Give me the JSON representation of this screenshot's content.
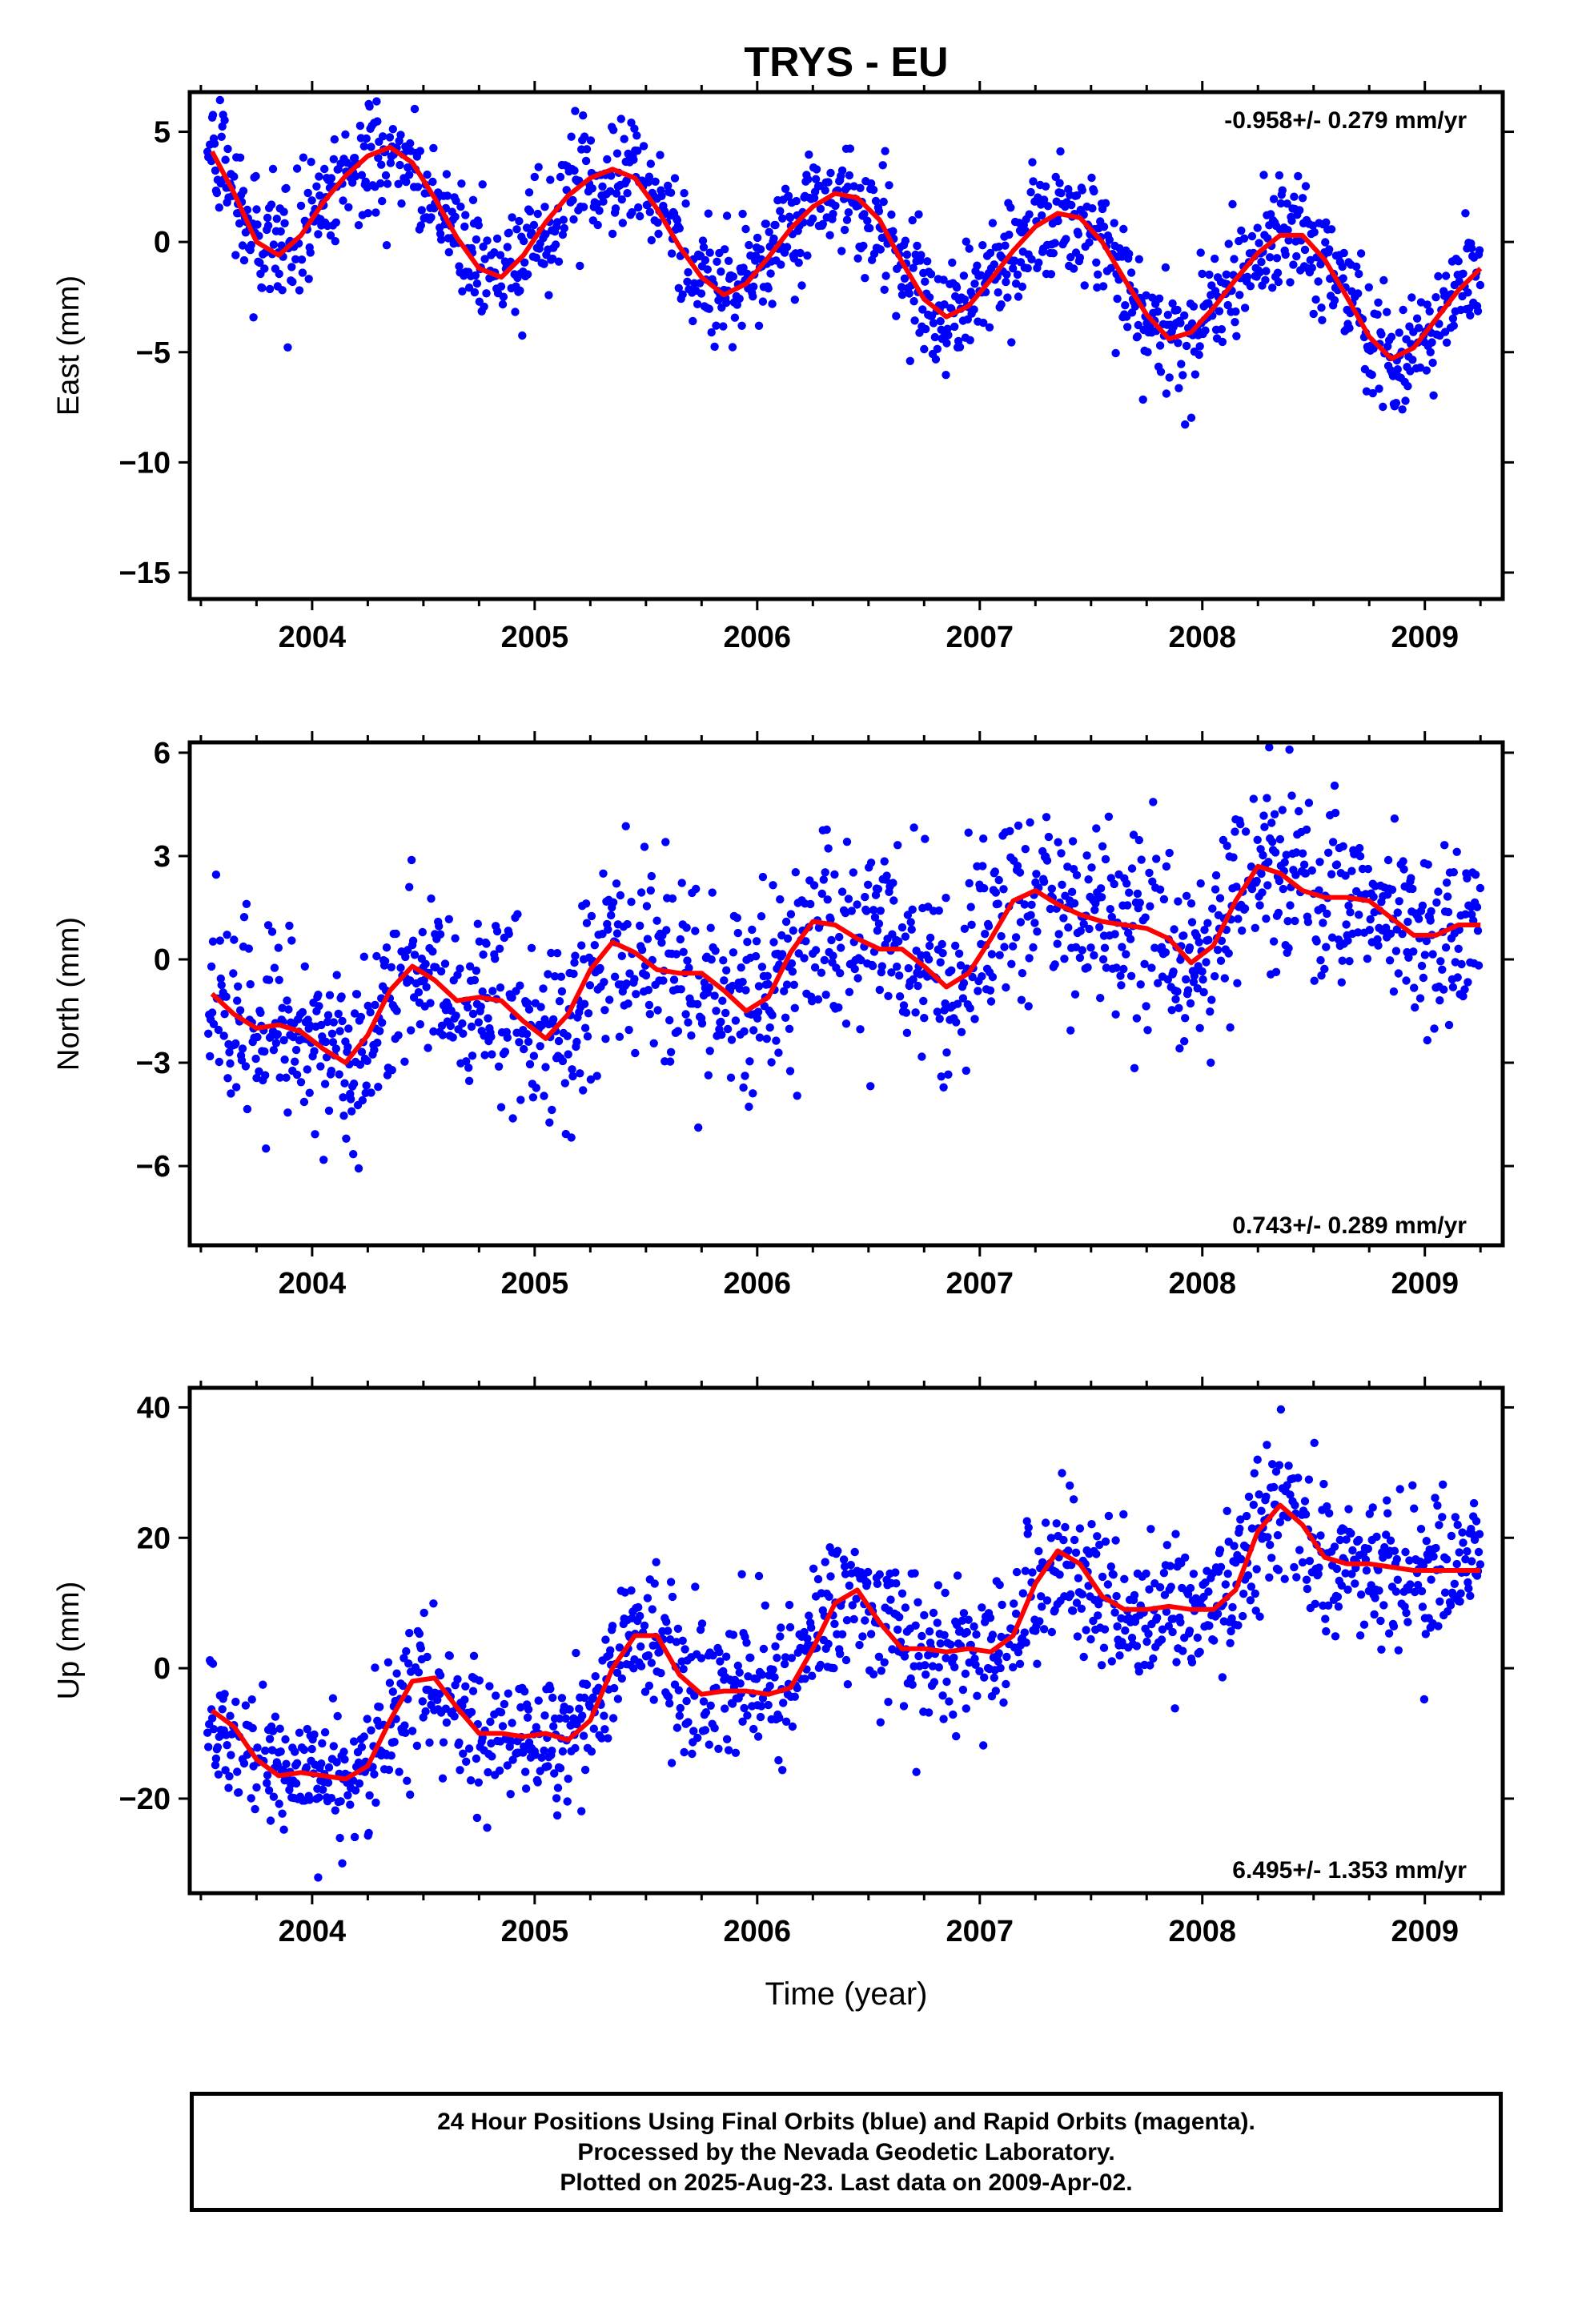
{
  "title": "TRYS - EU",
  "xlabel": "Time (year)",
  "caption": {
    "line1": "24 Hour Positions Using Final Orbits (blue) and Rapid Orbits (magenta).",
    "line2": "Processed by the Nevada Geodetic Laboratory.",
    "line3": "Plotted on 2025-Aug-23. Last data on 2009-Apr-02."
  },
  "colors": {
    "points": "#0000ff",
    "model": "#ff0000",
    "frame": "#000000"
  },
  "chart_data": [
    {
      "type": "scatter",
      "panel": "east",
      "ylabel": "East (mm)",
      "rate_label": "-0.958+/- 0.279 mm/yr",
      "xlim": [
        2003.45,
        2009.35
      ],
      "ylim": [
        -16.2,
        6.8
      ],
      "xticks": [
        "2004",
        "2005",
        "2006",
        "2007",
        "2008",
        "2009"
      ],
      "yticks": [
        5,
        0,
        -5,
        -10,
        -15
      ],
      "model": {
        "name": "fit",
        "x": [
          2003.55,
          2003.65,
          2003.75,
          2003.85,
          2003.95,
          2004.05,
          2004.15,
          2004.25,
          2004.35,
          2004.45,
          2004.55,
          2004.65,
          2004.75,
          2004.85,
          2004.95,
          2005.05,
          2005.15,
          2005.25,
          2005.35,
          2005.45,
          2005.55,
          2005.65,
          2005.75,
          2005.85,
          2005.95,
          2006.05,
          2006.15,
          2006.25,
          2006.35,
          2006.45,
          2006.55,
          2006.65,
          2006.75,
          2006.85,
          2006.95,
          2007.05,
          2007.15,
          2007.25,
          2007.35,
          2007.45,
          2007.55,
          2007.65,
          2007.75,
          2007.85,
          2007.95,
          2008.05,
          2008.15,
          2008.25,
          2008.35,
          2008.45,
          2008.55,
          2008.65,
          2008.75,
          2008.85,
          2008.95,
          2009.05,
          2009.15,
          2009.25
        ],
        "y": [
          4.1,
          2.2,
          0.0,
          -0.6,
          0.3,
          1.8,
          3.0,
          3.9,
          4.3,
          3.6,
          2.0,
          0.2,
          -1.2,
          -1.6,
          -0.6,
          0.9,
          2.1,
          2.9,
          3.3,
          2.9,
          1.5,
          -0.2,
          -1.6,
          -2.4,
          -1.9,
          -0.7,
          0.6,
          1.6,
          2.2,
          2.0,
          1.0,
          -0.9,
          -2.6,
          -3.4,
          -2.9,
          -1.7,
          -0.4,
          0.7,
          1.3,
          1.1,
          0.0,
          -1.7,
          -3.3,
          -4.4,
          -4.1,
          -3.0,
          -1.7,
          -0.5,
          0.3,
          0.3,
          -0.8,
          -2.5,
          -4.3,
          -5.3,
          -4.8,
          -3.5,
          -2.2,
          -1.2
        ]
      },
      "scatter_spread": 1.3
    },
    {
      "type": "scatter",
      "panel": "north",
      "ylabel": "North (mm)",
      "rate_label": "0.743+/- 0.289 mm/yr",
      "xlim": [
        2003.45,
        2009.35
      ],
      "ylim": [
        -8.3,
        6.3
      ],
      "xticks": [
        "2004",
        "2005",
        "2006",
        "2007",
        "2008",
        "2009"
      ],
      "yticks": [
        6,
        3,
        0,
        -3,
        -6
      ],
      "model": {
        "name": "fit",
        "x": [
          2003.55,
          2003.65,
          2003.75,
          2003.85,
          2003.95,
          2004.05,
          2004.15,
          2004.25,
          2004.35,
          2004.45,
          2004.55,
          2004.65,
          2004.75,
          2004.85,
          2004.95,
          2005.05,
          2005.15,
          2005.25,
          2005.35,
          2005.45,
          2005.55,
          2005.65,
          2005.75,
          2005.85,
          2005.95,
          2006.05,
          2006.15,
          2006.25,
          2006.35,
          2006.45,
          2006.55,
          2006.65,
          2006.75,
          2006.85,
          2006.95,
          2007.05,
          2007.15,
          2007.25,
          2007.35,
          2007.45,
          2007.55,
          2007.65,
          2007.75,
          2007.85,
          2007.95,
          2008.05,
          2008.15,
          2008.25,
          2008.35,
          2008.45,
          2008.55,
          2008.65,
          2008.75,
          2008.85,
          2008.95,
          2009.05,
          2009.15,
          2009.25
        ],
        "y": [
          -1.0,
          -1.6,
          -2.0,
          -1.9,
          -2.1,
          -2.6,
          -3.0,
          -2.2,
          -0.9,
          -0.2,
          -0.6,
          -1.2,
          -1.1,
          -1.2,
          -1.8,
          -2.3,
          -1.6,
          -0.3,
          0.5,
          0.2,
          -0.3,
          -0.4,
          -0.4,
          -0.9,
          -1.5,
          -1.1,
          0.2,
          1.1,
          1.0,
          0.6,
          0.3,
          0.3,
          -0.2,
          -0.8,
          -0.4,
          0.6,
          1.7,
          2.0,
          1.6,
          1.3,
          1.1,
          1.0,
          0.9,
          0.6,
          -0.1,
          0.4,
          1.7,
          2.7,
          2.5,
          2.0,
          1.8,
          1.8,
          1.7,
          1.2,
          0.7,
          0.7,
          1.0,
          1.0
        ]
      },
      "scatter_spread": 1.4
    },
    {
      "type": "scatter",
      "panel": "up",
      "ylabel": "Up (mm)",
      "rate_label": "6.495+/- 1.353 mm/yr",
      "xlim": [
        2003.45,
        2009.35
      ],
      "ylim": [
        -34.5,
        43
      ],
      "xticks": [
        "2004",
        "2005",
        "2006",
        "2007",
        "2008",
        "2009"
      ],
      "yticks": [
        40,
        20,
        0,
        -20
      ],
      "model": {
        "name": "fit",
        "x": [
          2003.55,
          2003.65,
          2003.75,
          2003.85,
          2003.95,
          2004.05,
          2004.15,
          2004.25,
          2004.35,
          2004.45,
          2004.55,
          2004.65,
          2004.75,
          2004.85,
          2004.95,
          2005.05,
          2005.15,
          2005.25,
          2005.35,
          2005.45,
          2005.55,
          2005.65,
          2005.75,
          2005.85,
          2005.95,
          2006.05,
          2006.15,
          2006.25,
          2006.35,
          2006.45,
          2006.55,
          2006.65,
          2006.75,
          2006.85,
          2006.95,
          2007.05,
          2007.15,
          2007.25,
          2007.35,
          2007.45,
          2007.55,
          2007.65,
          2007.75,
          2007.85,
          2007.95,
          2008.05,
          2008.15,
          2008.25,
          2008.35,
          2008.45,
          2008.55,
          2008.65,
          2008.75,
          2008.85,
          2008.95,
          2009.05,
          2009.15,
          2009.25
        ],
        "y": [
          -6.5,
          -9.0,
          -14.0,
          -16.5,
          -16.0,
          -16.5,
          -17.0,
          -15.0,
          -8.0,
          -2.0,
          -1.5,
          -6.0,
          -10.0,
          -10.0,
          -10.5,
          -10.0,
          -11.0,
          -8.0,
          0.0,
          5.0,
          5.0,
          -1.0,
          -4.0,
          -3.5,
          -3.5,
          -4.0,
          -3.0,
          3.0,
          10.0,
          12.0,
          7.0,
          3.0,
          3.0,
          2.5,
          3.0,
          2.5,
          5.0,
          13.0,
          18.0,
          16.0,
          11.0,
          9.0,
          9.0,
          9.5,
          9.0,
          9.0,
          12.0,
          21.0,
          25.0,
          22.0,
          17.0,
          16.0,
          16.0,
          15.5,
          15.0,
          15.0,
          15.0,
          15.0
        ]
      },
      "scatter_spread": 5.5
    }
  ]
}
